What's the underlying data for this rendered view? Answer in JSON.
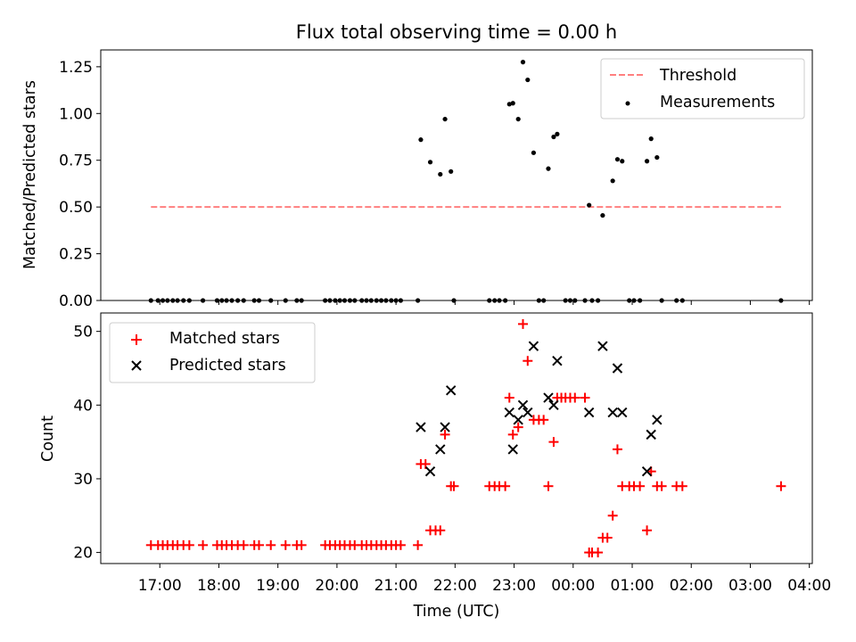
{
  "chart_data": [
    {
      "type": "scatter",
      "title": "Flux total observing time = 0.00 h",
      "xlabel": "",
      "ylabel": "Matched/Predicted stars",
      "ylim": [
        0,
        1.34
      ],
      "yticks": [
        "0.00",
        "0.25",
        "0.50",
        "0.75",
        "1.00",
        "1.25"
      ],
      "ytick_values": [
        0,
        0.25,
        0.5,
        0.75,
        1.0,
        1.25
      ],
      "legend": {
        "position": "top-right",
        "entries": [
          "Threshold",
          "Measurements"
        ]
      },
      "threshold": {
        "name": "Threshold",
        "value": 0.5,
        "x_start": 16.85,
        "x_end": 27.52,
        "color": "#ff7f7f",
        "style": "dashed"
      },
      "measurements": {
        "name": "Measurements",
        "color": "#000000",
        "points": [
          [
            16.85,
            0
          ],
          [
            16.97,
            0
          ],
          [
            17.05,
            0
          ],
          [
            17.13,
            0
          ],
          [
            17.22,
            0
          ],
          [
            17.3,
            0
          ],
          [
            17.4,
            0
          ],
          [
            17.5,
            0
          ],
          [
            17.73,
            0
          ],
          [
            17.97,
            0
          ],
          [
            18.05,
            0
          ],
          [
            18.13,
            0
          ],
          [
            18.22,
            0
          ],
          [
            18.32,
            0
          ],
          [
            18.42,
            0
          ],
          [
            18.6,
            0
          ],
          [
            18.68,
            0
          ],
          [
            18.88,
            0
          ],
          [
            19.13,
            0
          ],
          [
            19.32,
            0
          ],
          [
            19.4,
            0
          ],
          [
            19.8,
            0
          ],
          [
            19.88,
            0
          ],
          [
            19.97,
            0
          ],
          [
            20.05,
            0
          ],
          [
            20.13,
            0
          ],
          [
            20.22,
            0
          ],
          [
            20.3,
            0
          ],
          [
            20.42,
            0
          ],
          [
            20.5,
            0
          ],
          [
            20.58,
            0
          ],
          [
            20.67,
            0
          ],
          [
            20.75,
            0
          ],
          [
            20.83,
            0
          ],
          [
            20.92,
            0
          ],
          [
            21.0,
            0
          ],
          [
            21.08,
            0
          ],
          [
            21.37,
            0
          ],
          [
            21.42,
            0.86
          ],
          [
            21.58,
            0.74
          ],
          [
            21.75,
            0.675
          ],
          [
            21.83,
            0.97
          ],
          [
            21.93,
            0.69
          ],
          [
            21.98,
            0
          ],
          [
            22.58,
            0
          ],
          [
            22.67,
            0
          ],
          [
            22.75,
            0
          ],
          [
            22.85,
            0
          ],
          [
            22.92,
            1.05
          ],
          [
            22.98,
            1.055
          ],
          [
            23.07,
            0.97
          ],
          [
            23.15,
            1.275
          ],
          [
            23.23,
            1.18
          ],
          [
            23.33,
            0.79
          ],
          [
            23.42,
            0
          ],
          [
            23.5,
            0
          ],
          [
            23.58,
            0.705
          ],
          [
            23.67,
            0.875
          ],
          [
            23.73,
            0.89
          ],
          [
            23.87,
            0
          ],
          [
            23.95,
            0
          ],
          [
            24.03,
            0
          ],
          [
            24.2,
            0
          ],
          [
            24.27,
            0.51
          ],
          [
            24.32,
            0
          ],
          [
            24.42,
            0
          ],
          [
            24.5,
            0.455
          ],
          [
            24.67,
            0.64
          ],
          [
            24.75,
            0.755
          ],
          [
            24.83,
            0.745
          ],
          [
            24.95,
            0
          ],
          [
            25.03,
            0
          ],
          [
            25.13,
            0
          ],
          [
            25.25,
            0.745
          ],
          [
            25.32,
            0.865
          ],
          [
            25.42,
            0.765
          ],
          [
            25.5,
            0
          ],
          [
            25.75,
            0
          ],
          [
            25.85,
            0
          ],
          [
            27.52,
            0
          ]
        ]
      }
    },
    {
      "type": "scatter",
      "title": "",
      "xlabel": "Time (UTC)",
      "ylabel": "Count",
      "ylim": [
        18.5,
        52.5
      ],
      "yticks": [
        "20",
        "30",
        "40",
        "50"
      ],
      "ytick_values": [
        20,
        30,
        40,
        50
      ],
      "xlim": [
        16.0,
        28.05
      ],
      "xticks": [
        "17:00",
        "18:00",
        "19:00",
        "20:00",
        "21:00",
        "22:00",
        "23:00",
        "00:00",
        "01:00",
        "02:00",
        "03:00",
        "04:00"
      ],
      "xtick_values": [
        17,
        18,
        19,
        20,
        21,
        22,
        23,
        24,
        25,
        26,
        27,
        28
      ],
      "legend": {
        "position": "top-left",
        "entries": [
          "Matched stars",
          "Predicted stars"
        ]
      },
      "series": [
        {
          "name": "Matched stars",
          "marker": "+",
          "color": "#ff0000",
          "points": [
            [
              16.85,
              21
            ],
            [
              16.97,
              21
            ],
            [
              17.05,
              21
            ],
            [
              17.13,
              21
            ],
            [
              17.22,
              21
            ],
            [
              17.3,
              21
            ],
            [
              17.4,
              21
            ],
            [
              17.5,
              21
            ],
            [
              17.73,
              21
            ],
            [
              17.97,
              21
            ],
            [
              18.05,
              21
            ],
            [
              18.13,
              21
            ],
            [
              18.22,
              21
            ],
            [
              18.32,
              21
            ],
            [
              18.42,
              21
            ],
            [
              18.6,
              21
            ],
            [
              18.68,
              21
            ],
            [
              18.88,
              21
            ],
            [
              19.13,
              21
            ],
            [
              19.32,
              21
            ],
            [
              19.4,
              21
            ],
            [
              19.8,
              21
            ],
            [
              19.88,
              21
            ],
            [
              19.97,
              21
            ],
            [
              20.05,
              21
            ],
            [
              20.13,
              21
            ],
            [
              20.22,
              21
            ],
            [
              20.3,
              21
            ],
            [
              20.42,
              21
            ],
            [
              20.5,
              21
            ],
            [
              20.58,
              21
            ],
            [
              20.67,
              21
            ],
            [
              20.75,
              21
            ],
            [
              20.83,
              21
            ],
            [
              20.92,
              21
            ],
            [
              21.0,
              21
            ],
            [
              21.08,
              21
            ],
            [
              21.37,
              21
            ],
            [
              21.42,
              32
            ],
            [
              21.5,
              32
            ],
            [
              21.58,
              23
            ],
            [
              21.67,
              23
            ],
            [
              21.75,
              23
            ],
            [
              21.83,
              36
            ],
            [
              21.93,
              29
            ],
            [
              21.98,
              29
            ],
            [
              22.58,
              29
            ],
            [
              22.67,
              29
            ],
            [
              22.75,
              29
            ],
            [
              22.85,
              29
            ],
            [
              22.92,
              41
            ],
            [
              22.98,
              36
            ],
            [
              23.07,
              37
            ],
            [
              23.15,
              51
            ],
            [
              23.23,
              46
            ],
            [
              23.33,
              38
            ],
            [
              23.42,
              38
            ],
            [
              23.5,
              38
            ],
            [
              23.58,
              29
            ],
            [
              23.67,
              35
            ],
            [
              23.73,
              41
            ],
            [
              23.8,
              41
            ],
            [
              23.87,
              41
            ],
            [
              23.95,
              41
            ],
            [
              24.03,
              41
            ],
            [
              24.2,
              41
            ],
            [
              24.27,
              20
            ],
            [
              24.32,
              20
            ],
            [
              24.42,
              20
            ],
            [
              24.5,
              22
            ],
            [
              24.58,
              22
            ],
            [
              24.67,
              25
            ],
            [
              24.75,
              34
            ],
            [
              24.83,
              29
            ],
            [
              24.95,
              29
            ],
            [
              25.03,
              29
            ],
            [
              25.13,
              29
            ],
            [
              25.25,
              23
            ],
            [
              25.32,
              31
            ],
            [
              25.42,
              29
            ],
            [
              25.5,
              29
            ],
            [
              25.75,
              29
            ],
            [
              25.85,
              29
            ],
            [
              27.52,
              29
            ]
          ]
        },
        {
          "name": "Predicted stars",
          "marker": "x",
          "color": "#000000",
          "points": [
            [
              21.42,
              37
            ],
            [
              21.58,
              31
            ],
            [
              21.75,
              34
            ],
            [
              21.83,
              37
            ],
            [
              21.93,
              42
            ],
            [
              22.92,
              39
            ],
            [
              22.98,
              34
            ],
            [
              23.07,
              38
            ],
            [
              23.15,
              40
            ],
            [
              23.23,
              39
            ],
            [
              23.33,
              48
            ],
            [
              23.58,
              41
            ],
            [
              23.67,
              40
            ],
            [
              23.73,
              46
            ],
            [
              24.27,
              39
            ],
            [
              24.5,
              48
            ],
            [
              24.67,
              39
            ],
            [
              24.75,
              45
            ],
            [
              24.83,
              39
            ],
            [
              25.25,
              31
            ],
            [
              25.32,
              36
            ],
            [
              25.42,
              38
            ]
          ]
        }
      ]
    }
  ]
}
